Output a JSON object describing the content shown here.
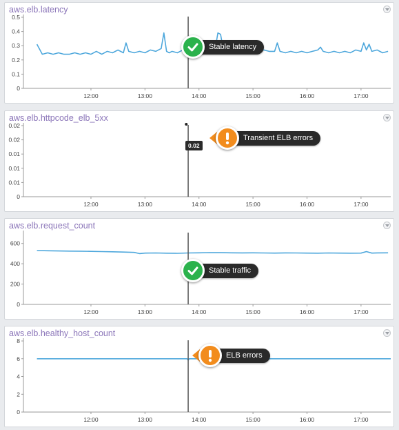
{
  "colors": {
    "line": "#4da7dc",
    "success": "#2bb24c",
    "warning": "#f28c1d",
    "title": "#8a74b8"
  },
  "chart_data": [
    {
      "type": "line",
      "title": "aws.elb.latency",
      "yticks": [
        "0",
        "0.1",
        "0.2",
        "0.3",
        "0.4",
        "0.5"
      ],
      "ylim": [
        0,
        0.5
      ],
      "xticks": [
        "12:00",
        "13:00",
        "14:00",
        "15:00",
        "16:00",
        "17:00"
      ],
      "x_hours": [
        11.0,
        11.1,
        11.2,
        11.3,
        11.4,
        11.5,
        11.6,
        11.7,
        11.8,
        11.9,
        12.0,
        12.1,
        12.2,
        12.3,
        12.4,
        12.5,
        12.6,
        12.65,
        12.7,
        12.8,
        12.9,
        13.0,
        13.1,
        13.2,
        13.3,
        13.35,
        13.4,
        13.45,
        13.5,
        13.6,
        13.7,
        13.8,
        14.0,
        14.2,
        14.3,
        14.35,
        14.4,
        14.45,
        14.5,
        14.6,
        14.8,
        15.0,
        15.1,
        15.2,
        15.3,
        15.4,
        15.45,
        15.5,
        15.6,
        15.7,
        15.8,
        15.9,
        16.0,
        16.1,
        16.2,
        16.25,
        16.3,
        16.4,
        16.5,
        16.6,
        16.7,
        16.8,
        16.9,
        17.0,
        17.05,
        17.1,
        17.15,
        17.2,
        17.3,
        17.4,
        17.5
      ],
      "values": [
        0.31,
        0.24,
        0.25,
        0.24,
        0.25,
        0.24,
        0.24,
        0.25,
        0.24,
        0.25,
        0.24,
        0.26,
        0.24,
        0.26,
        0.25,
        0.27,
        0.25,
        0.32,
        0.26,
        0.25,
        0.26,
        0.25,
        0.27,
        0.26,
        0.28,
        0.39,
        0.26,
        0.25,
        0.26,
        0.25,
        0.27,
        0.26,
        0.27,
        0.26,
        0.28,
        0.39,
        0.38,
        0.27,
        0.26,
        0.27,
        0.26,
        0.27,
        0.26,
        0.27,
        0.26,
        0.26,
        0.32,
        0.26,
        0.25,
        0.26,
        0.25,
        0.26,
        0.25,
        0.26,
        0.27,
        0.29,
        0.26,
        0.25,
        0.26,
        0.25,
        0.26,
        0.25,
        0.27,
        0.26,
        0.32,
        0.27,
        0.31,
        0.26,
        0.27,
        0.25,
        0.26
      ],
      "marker_hour": 13.8,
      "annotation": {
        "kind": "success",
        "label": "Stable latency"
      }
    },
    {
      "type": "line",
      "title": "aws.elb.httpcode_elb_5xx",
      "yticks": [
        "0",
        "0.01",
        "0.01",
        "0.01",
        "0.02",
        "0.02"
      ],
      "ylim": [
        0,
        0.02
      ],
      "xticks": [
        "12:00",
        "13:00",
        "14:00",
        "15:00",
        "16:00",
        "17:00"
      ],
      "x_hours": [
        13.79
      ],
      "values": [
        0.02
      ],
      "marker_hour": 13.8,
      "tooltip": "0.02",
      "annotation": {
        "kind": "warning",
        "label": "Transient ELB errors"
      }
    },
    {
      "type": "line",
      "title": "aws.elb.request_count",
      "yticks": [
        "0",
        "200",
        "400",
        "600"
      ],
      "ylim": [
        0,
        700
      ],
      "xticks": [
        "12:00",
        "13:00",
        "14:00",
        "15:00",
        "16:00",
        "17:00"
      ],
      "x_hours": [
        11.0,
        11.2,
        11.4,
        11.6,
        11.8,
        12.0,
        12.2,
        12.4,
        12.6,
        12.8,
        12.9,
        13.0,
        13.2,
        13.4,
        13.6,
        13.8,
        14.0,
        14.2,
        14.4,
        14.6,
        14.8,
        15.0,
        15.2,
        15.4,
        15.6,
        15.8,
        16.0,
        16.2,
        16.4,
        16.6,
        16.8,
        17.0,
        17.1,
        17.2,
        17.3,
        17.5
      ],
      "values": [
        530,
        528,
        526,
        525,
        524,
        522,
        520,
        518,
        515,
        512,
        500,
        505,
        506,
        504,
        503,
        506,
        508,
        510,
        509,
        508,
        507,
        508,
        506,
        505,
        507,
        506,
        505,
        504,
        506,
        505,
        504,
        505,
        520,
        505,
        507,
        508
      ],
      "marker_hour": 13.8,
      "annotation": {
        "kind": "success",
        "label": "Stable traffic"
      }
    },
    {
      "type": "line",
      "title": "aws.elb.healthy_host_count",
      "yticks": [
        "0",
        "2",
        "4",
        "6",
        "8"
      ],
      "ylim": [
        0,
        8
      ],
      "xticks": [
        "12:00",
        "13:00",
        "14:00",
        "15:00",
        "16:00",
        "17:00"
      ],
      "x_hours": [
        11.0,
        13.78,
        13.8,
        13.82,
        17.55
      ],
      "values": [
        6,
        6,
        5.85,
        6,
        6
      ],
      "marker_hour": 13.8,
      "annotation": {
        "kind": "warning",
        "label": "ELB errors"
      }
    }
  ]
}
